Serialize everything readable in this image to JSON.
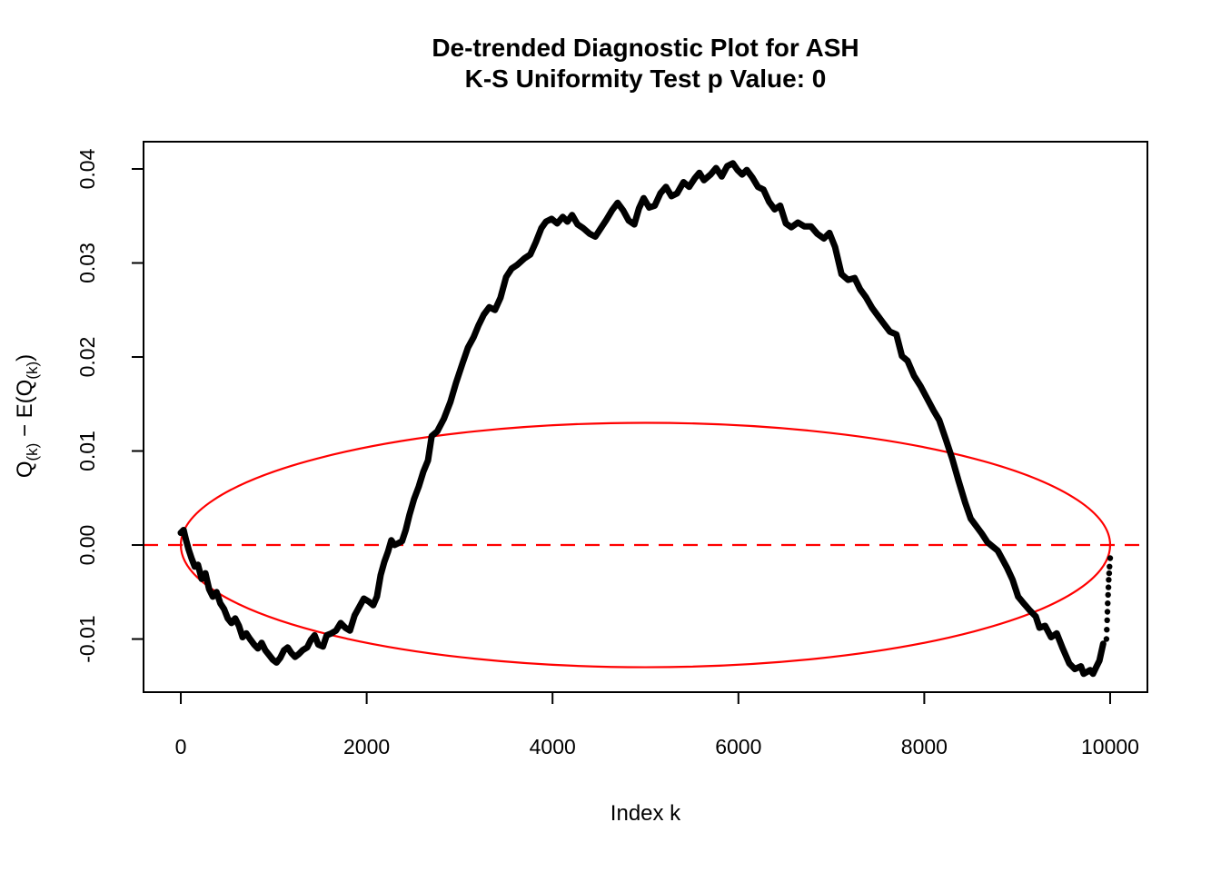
{
  "title": {
    "line1": "De-trended Diagnostic Plot for ASH",
    "line2": "K-S Uniformity Test p Value: 0"
  },
  "axes": {
    "x_label": "Index k",
    "y_label_parts": [
      {
        "text": "Q"
      },
      {
        "sub": "(k)"
      },
      {
        "text": " − E(Q"
      },
      {
        "sub": "(k)"
      },
      {
        "text": ")"
      }
    ]
  },
  "colors": {
    "accent_red": "#ff0000",
    "data_black": "#000000",
    "background": "#ffffff"
  },
  "chart_data": {
    "type": "scatter",
    "title": "De-trended Diagnostic Plot for ASH",
    "subtitle": "K-S Uniformity Test p Value: 0",
    "ks_p_value": "0",
    "xlabel": "Index k",
    "ylabel": "Q(k) − E(Q(k))",
    "xlim": [
      -401,
      10401
    ],
    "ylim": [
      -0.01565,
      0.0429
    ],
    "grid": false,
    "legend": "none",
    "x_ticks": [
      {
        "v": 0,
        "label": "0"
      },
      {
        "v": 2000,
        "label": "2000"
      },
      {
        "v": 4000,
        "label": "4000"
      },
      {
        "v": 6000,
        "label": "6000"
      },
      {
        "v": 8000,
        "label": "8000"
      },
      {
        "v": 10000,
        "label": "10000"
      }
    ],
    "y_ticks": [
      {
        "v": -0.01,
        "label": "-0.01"
      },
      {
        "v": 0.0,
        "label": "0.00"
      },
      {
        "v": 0.01,
        "label": "0.01"
      },
      {
        "v": 0.02,
        "label": "0.02"
      },
      {
        "v": 0.03,
        "label": "0.03"
      },
      {
        "v": 0.04,
        "label": "0.04"
      }
    ],
    "annotations": {
      "zero_reference_line": {
        "style": "dashed",
        "y": 0,
        "color": "#ff0000"
      },
      "confidence_ellipse": {
        "center": [
          5000,
          0
        ],
        "rx": 5000,
        "ry": 0.013,
        "color": "#ff0000"
      }
    },
    "series": [
      {
        "name": "detrended-order-statistics",
        "color": "#000000",
        "style": "thick-point-line",
        "points": [
          [
            0,
            0.0013
          ],
          [
            30,
            0.0016
          ],
          [
            55,
            0.0006
          ],
          [
            85,
            -0.0005
          ],
          [
            115,
            -0.0014
          ],
          [
            150,
            -0.0023
          ],
          [
            185,
            -0.0021
          ],
          [
            225,
            -0.0036
          ],
          [
            265,
            -0.003
          ],
          [
            305,
            -0.0047
          ],
          [
            345,
            -0.0055
          ],
          [
            385,
            -0.005
          ],
          [
            425,
            -0.0062
          ],
          [
            465,
            -0.0068
          ],
          [
            505,
            -0.0078
          ],
          [
            545,
            -0.0083
          ],
          [
            585,
            -0.0078
          ],
          [
            625,
            -0.0086
          ],
          [
            665,
            -0.0098
          ],
          [
            705,
            -0.0094
          ],
          [
            745,
            -0.01
          ],
          [
            790,
            -0.0106
          ],
          [
            830,
            -0.011
          ],
          [
            870,
            -0.0104
          ],
          [
            910,
            -0.0112
          ],
          [
            950,
            -0.0117
          ],
          [
            990,
            -0.0122
          ],
          [
            1030,
            -0.0125
          ],
          [
            1070,
            -0.012
          ],
          [
            1110,
            -0.0112
          ],
          [
            1150,
            -0.0109
          ],
          [
            1190,
            -0.0115
          ],
          [
            1230,
            -0.0119
          ],
          [
            1270,
            -0.0116
          ],
          [
            1310,
            -0.0112
          ],
          [
            1360,
            -0.0109
          ],
          [
            1400,
            -0.0101
          ],
          [
            1440,
            -0.0096
          ],
          [
            1480,
            -0.0106
          ],
          [
            1530,
            -0.0108
          ],
          [
            1570,
            -0.0096
          ],
          [
            1620,
            -0.0094
          ],
          [
            1670,
            -0.0091
          ],
          [
            1720,
            -0.0083
          ],
          [
            1770,
            -0.0088
          ],
          [
            1820,
            -0.0091
          ],
          [
            1870,
            -0.0075
          ],
          [
            1920,
            -0.0066
          ],
          [
            1970,
            -0.0057
          ],
          [
            2020,
            -0.006
          ],
          [
            2070,
            -0.0064
          ],
          [
            2110,
            -0.0055
          ],
          [
            2150,
            -0.0032
          ],
          [
            2190,
            -0.0018
          ],
          [
            2230,
            -0.0007
          ],
          [
            2265,
            0.0005
          ],
          [
            2300,
            0
          ],
          [
            2340,
            0.0002
          ],
          [
            2380,
            0.0004
          ],
          [
            2420,
            0.0016
          ],
          [
            2460,
            0.0032
          ],
          [
            2510,
            0.0049
          ],
          [
            2560,
            0.0062
          ],
          [
            2610,
            0.0078
          ],
          [
            2660,
            0.009
          ],
          [
            2700,
            0.0116
          ],
          [
            2760,
            0.0121
          ],
          [
            2830,
            0.0134
          ],
          [
            2900,
            0.0152
          ],
          [
            2960,
            0.0172
          ],
          [
            3030,
            0.0193
          ],
          [
            3090,
            0.021
          ],
          [
            3150,
            0.0221
          ],
          [
            3200,
            0.0233
          ],
          [
            3260,
            0.0245
          ],
          [
            3320,
            0.0253
          ],
          [
            3380,
            0.025
          ],
          [
            3440,
            0.0263
          ],
          [
            3500,
            0.0285
          ],
          [
            3560,
            0.0294
          ],
          [
            3620,
            0.0298
          ],
          [
            3700,
            0.0305
          ],
          [
            3760,
            0.0309
          ],
          [
            3820,
            0.0322
          ],
          [
            3880,
            0.0337
          ],
          [
            3930,
            0.0344
          ],
          [
            3990,
            0.0347
          ],
          [
            4050,
            0.0342
          ],
          [
            4110,
            0.0349
          ],
          [
            4160,
            0.0344
          ],
          [
            4210,
            0.0351
          ],
          [
            4270,
            0.0341
          ],
          [
            4330,
            0.0337
          ],
          [
            4400,
            0.0331
          ],
          [
            4460,
            0.0328
          ],
          [
            4520,
            0.0337
          ],
          [
            4580,
            0.0346
          ],
          [
            4640,
            0.0356
          ],
          [
            4700,
            0.0364
          ],
          [
            4760,
            0.0356
          ],
          [
            4820,
            0.0345
          ],
          [
            4880,
            0.0341
          ],
          [
            4930,
            0.0358
          ],
          [
            4980,
            0.0369
          ],
          [
            5040,
            0.0359
          ],
          [
            5100,
            0.0361
          ],
          [
            5160,
            0.0374
          ],
          [
            5220,
            0.0381
          ],
          [
            5280,
            0.0371
          ],
          [
            5340,
            0.0374
          ],
          [
            5410,
            0.0386
          ],
          [
            5470,
            0.0381
          ],
          [
            5530,
            0.039
          ],
          [
            5580,
            0.0396
          ],
          [
            5630,
            0.0388
          ],
          [
            5700,
            0.0394
          ],
          [
            5760,
            0.0401
          ],
          [
            5820,
            0.0392
          ],
          [
            5880,
            0.0403
          ],
          [
            5940,
            0.0406
          ],
          [
            5990,
            0.0399
          ],
          [
            6040,
            0.0394
          ],
          [
            6090,
            0.0399
          ],
          [
            6150,
            0.0391
          ],
          [
            6210,
            0.0381
          ],
          [
            6270,
            0.0378
          ],
          [
            6330,
            0.0365
          ],
          [
            6390,
            0.0357
          ],
          [
            6450,
            0.0361
          ],
          [
            6510,
            0.0342
          ],
          [
            6570,
            0.0338
          ],
          [
            6640,
            0.0343
          ],
          [
            6710,
            0.0339
          ],
          [
            6780,
            0.0339
          ],
          [
            6850,
            0.0331
          ],
          [
            6920,
            0.0326
          ],
          [
            6980,
            0.0332
          ],
          [
            7040,
            0.0317
          ],
          [
            7110,
            0.0288
          ],
          [
            7180,
            0.0282
          ],
          [
            7250,
            0.0284
          ],
          [
            7310,
            0.0272
          ],
          [
            7370,
            0.0264
          ],
          [
            7440,
            0.0252
          ],
          [
            7500,
            0.0244
          ],
          [
            7560,
            0.0236
          ],
          [
            7630,
            0.0227
          ],
          [
            7700,
            0.0224
          ],
          [
            7760,
            0.0201
          ],
          [
            7820,
            0.0196
          ],
          [
            7890,
            0.018
          ],
          [
            7960,
            0.0169
          ],
          [
            8030,
            0.0156
          ],
          [
            8100,
            0.0143
          ],
          [
            8160,
            0.0133
          ],
          [
            8230,
            0.0113
          ],
          [
            8300,
            0.0092
          ],
          [
            8370,
            0.0068
          ],
          [
            8440,
            0.0045
          ],
          [
            8500,
            0.0028
          ],
          [
            8560,
            0.002
          ],
          [
            8620,
            0.0012
          ],
          [
            8680,
            0.0003
          ],
          [
            8740,
            -0.0002
          ],
          [
            8790,
            -0.0006
          ],
          [
            8840,
            -0.0015
          ],
          [
            8890,
            -0.0024
          ],
          [
            8950,
            -0.0037
          ],
          [
            9010,
            -0.0055
          ],
          [
            9070,
            -0.0062
          ],
          [
            9130,
            -0.0069
          ],
          [
            9200,
            -0.0076
          ],
          [
            9240,
            -0.0088
          ],
          [
            9300,
            -0.0086
          ],
          [
            9365,
            -0.0098
          ],
          [
            9425,
            -0.0094
          ],
          [
            9490,
            -0.011
          ],
          [
            9560,
            -0.0126
          ],
          [
            9620,
            -0.0132
          ],
          [
            9685,
            -0.0129
          ],
          [
            9715,
            -0.0137
          ],
          [
            9785,
            -0.0133
          ],
          [
            9815,
            -0.0137
          ],
          [
            9855,
            -0.0129
          ],
          [
            9885,
            -0.0123
          ],
          [
            9925,
            -0.0105
          ]
        ]
      },
      {
        "name": "tail-points",
        "color": "#000000",
        "style": "points",
        "points": [
          [
            9960,
            -0.01
          ],
          [
            9964,
            -0.009
          ],
          [
            9968,
            -0.008
          ],
          [
            9971,
            -0.0071
          ],
          [
            9974,
            -0.0062
          ],
          [
            9978,
            -0.0053
          ],
          [
            9982,
            -0.0045
          ],
          [
            9985,
            -0.0037
          ],
          [
            9989,
            -0.003
          ],
          [
            9993,
            -0.0023
          ],
          [
            10000,
            -0.0014
          ]
        ]
      }
    ]
  }
}
